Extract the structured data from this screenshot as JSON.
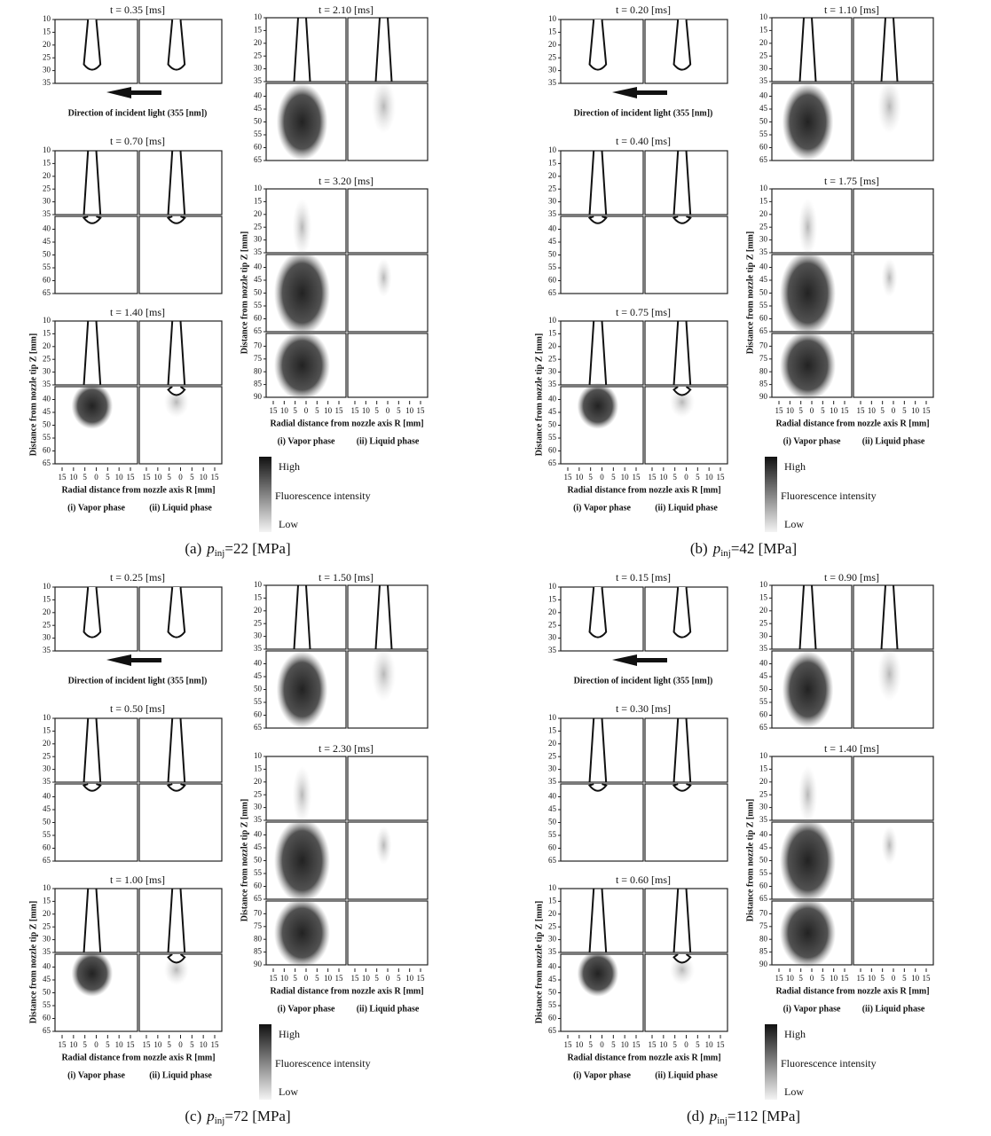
{
  "common": {
    "direction": "Direction of incident light  (355 [nm])",
    "y_axis": "Distance from nozzle tip Z [mm]",
    "x_axis": "Radial distance from nozzle axis R [mm]",
    "vapor": "(i) Vapor phase",
    "liquid": "(ii) Liquid phase",
    "legend": {
      "high": "High",
      "title": "Fluorescence intensity",
      "low": "Low"
    },
    "xticks": [
      15,
      10,
      5,
      0,
      5,
      10,
      15
    ],
    "yticks": [
      [
        10,
        15,
        20,
        25,
        30,
        35
      ],
      [
        40,
        45,
        50,
        55,
        60,
        65
      ],
      [
        70,
        75,
        80,
        85,
        90
      ]
    ]
  },
  "panels": [
    {
      "letter": "(a)",
      "symbol": "p",
      "subscript": "inj",
      "value": "=22 [MPa]",
      "left_times": [
        "t = 0.35 [ms]",
        "t = 0.70 [ms]",
        "t = 1.40 [ms]"
      ],
      "right_times": [
        "t = 2.10 [ms]",
        "t = 3.20 [ms]"
      ]
    },
    {
      "letter": "(b)",
      "symbol": "p",
      "subscript": "inj",
      "value": "=42 [MPa]",
      "left_times": [
        "t = 0.20 [ms]",
        "t = 0.40 [ms]",
        "t = 0.75 [ms]"
      ],
      "right_times": [
        "t = 1.10 [ms]",
        "t = 1.75 [ms]"
      ]
    },
    {
      "letter": "(c)",
      "symbol": "p",
      "subscript": "inj",
      "value": "=72 [MPa]",
      "left_times": [
        "t = 0.25 [ms]",
        "t = 0.50 [ms]",
        "t = 1.00 [ms]"
      ],
      "right_times": [
        "t = 1.50 [ms]",
        "t = 2.30 [ms]"
      ]
    },
    {
      "letter": "(d)",
      "symbol": "p",
      "subscript": "inj",
      "value": "=112 [MPa]",
      "left_times": [
        "t = 0.15 [ms]",
        "t = 0.30 [ms]",
        "t = 0.60 [ms]"
      ],
      "right_times": [
        "t = 0.90 [ms]",
        "t = 1.40 [ms]"
      ]
    }
  ]
}
